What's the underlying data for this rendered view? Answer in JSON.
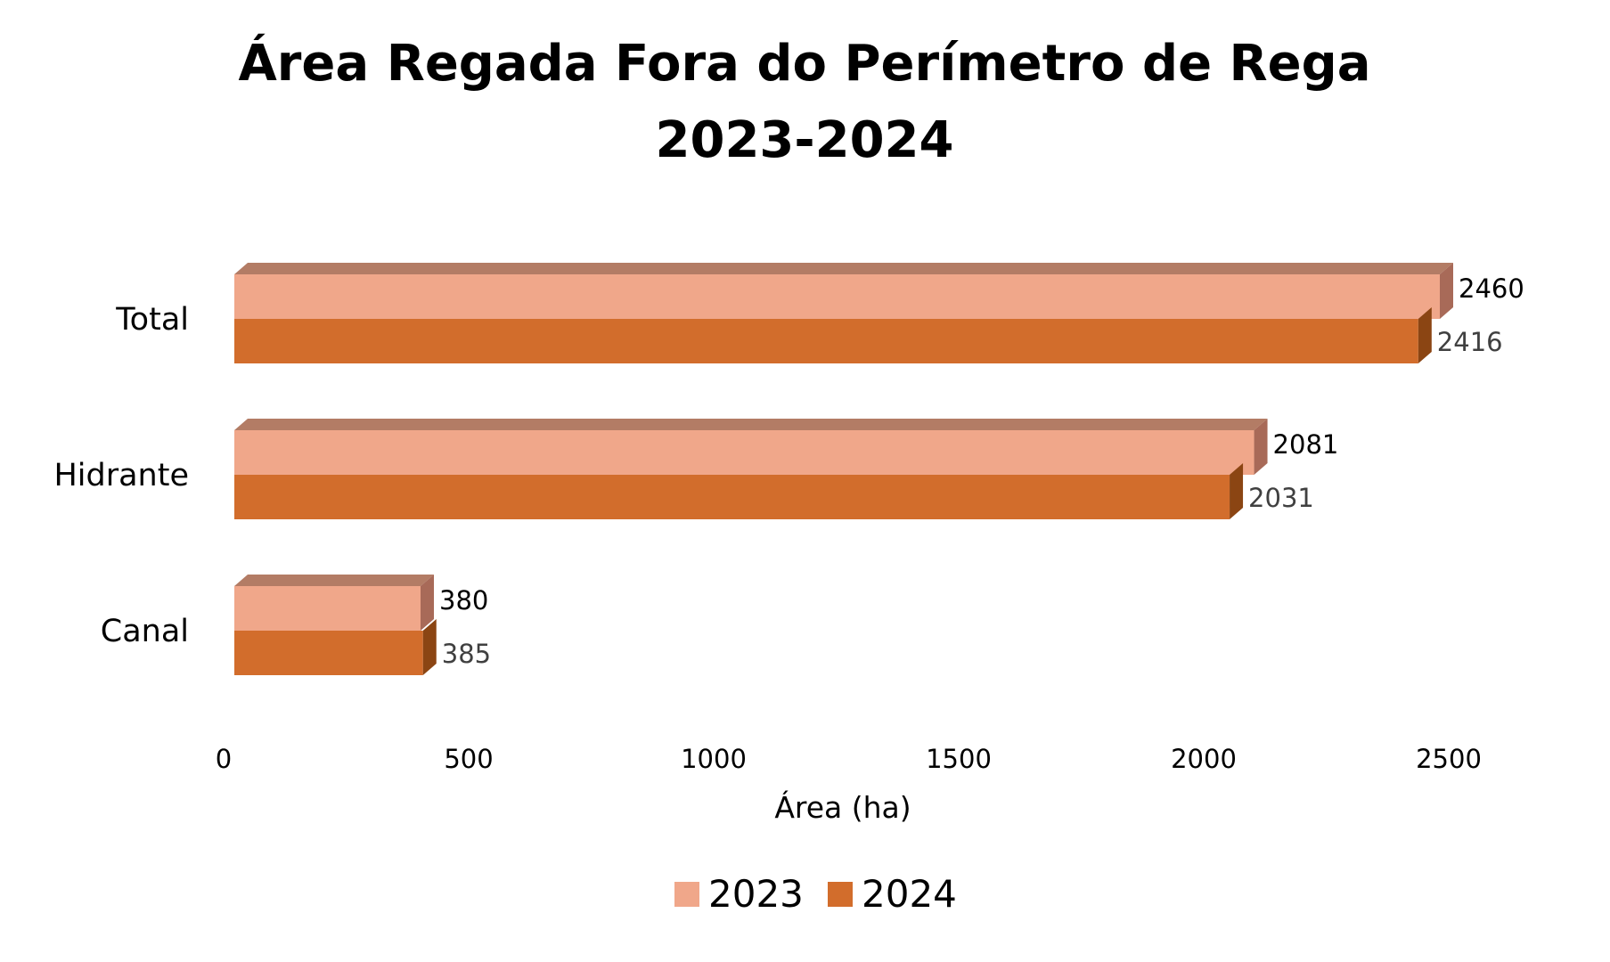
{
  "chart_data": {
    "type": "bar",
    "orientation": "horizontal",
    "style": "3d",
    "title": [
      "Área Regada Fora do Perímetro de Rega",
      "2023-2024"
    ],
    "xlabel": "Área (ha)",
    "ylabel": "",
    "xlim": [
      0,
      2500
    ],
    "xticks": [
      0,
      500,
      1000,
      1500,
      2000,
      2500
    ],
    "grid": false,
    "legend_position": "bottom",
    "categories": [
      "Total",
      "Hidrante",
      "Canal"
    ],
    "series": [
      {
        "name": "2023",
        "values": [
          2460,
          2081,
          380
        ],
        "color": "#F0A78A",
        "top_color": "#B37C65",
        "side_color": "#A86A58",
        "label_color": "#000000"
      },
      {
        "name": "2024",
        "values": [
          2416,
          2031,
          385
        ],
        "color": "#D26D2C",
        "top_color": "#B37C65",
        "side_color": "#8B4513",
        "label_color": "#404040"
      }
    ]
  }
}
